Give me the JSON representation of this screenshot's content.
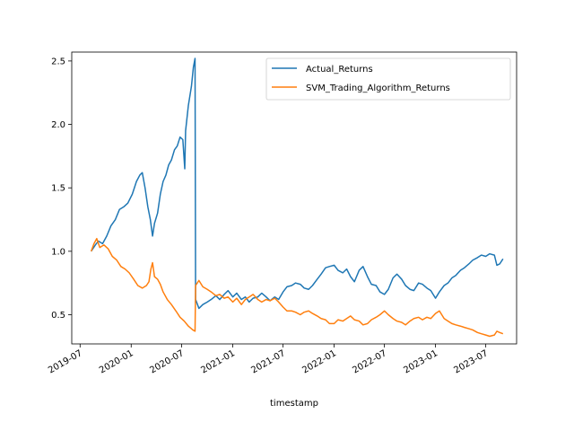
{
  "chart_data": {
    "type": "line",
    "title": "",
    "xlabel": "timestamp",
    "ylabel": "",
    "x_ticks": [
      "2019-07",
      "2020-01",
      "2020-07",
      "2021-01",
      "2021-07",
      "2022-01",
      "2022-07",
      "2023-01",
      "2023-07"
    ],
    "y_ticks": [
      "0.5",
      "1.0",
      "1.5",
      "2.0",
      "2.5"
    ],
    "xlim": [
      "2019-06-01",
      "2023-10-20"
    ],
    "ylim": [
      0.27,
      2.57
    ],
    "grid": false,
    "legend_position": "upper right",
    "series": [
      {
        "name": "Actual_Returns",
        "color": "#1f77b4",
        "points": [
          [
            "2019-08-10",
            1.0
          ],
          [
            "2019-08-25",
            1.05
          ],
          [
            "2019-09-05",
            1.08
          ],
          [
            "2019-09-20",
            1.06
          ],
          [
            "2019-10-05",
            1.12
          ],
          [
            "2019-10-20",
            1.2
          ],
          [
            "2019-11-05",
            1.25
          ],
          [
            "2019-11-20",
            1.33
          ],
          [
            "2019-12-05",
            1.35
          ],
          [
            "2019-12-20",
            1.38
          ],
          [
            "2020-01-05",
            1.45
          ],
          [
            "2020-01-20",
            1.55
          ],
          [
            "2020-02-01",
            1.6
          ],
          [
            "2020-02-10",
            1.62
          ],
          [
            "2020-02-20",
            1.5
          ],
          [
            "2020-03-01",
            1.35
          ],
          [
            "2020-03-10",
            1.25
          ],
          [
            "2020-03-18",
            1.12
          ],
          [
            "2020-03-25",
            1.22
          ],
          [
            "2020-04-05",
            1.3
          ],
          [
            "2020-04-15",
            1.45
          ],
          [
            "2020-04-25",
            1.55
          ],
          [
            "2020-05-05",
            1.6
          ],
          [
            "2020-05-15",
            1.68
          ],
          [
            "2020-05-25",
            1.72
          ],
          [
            "2020-06-05",
            1.8
          ],
          [
            "2020-06-15",
            1.83
          ],
          [
            "2020-06-25",
            1.9
          ],
          [
            "2020-07-05",
            1.88
          ],
          [
            "2020-07-12",
            1.65
          ],
          [
            "2020-07-15",
            1.95
          ],
          [
            "2020-07-25",
            2.15
          ],
          [
            "2020-08-05",
            2.3
          ],
          [
            "2020-08-12",
            2.45
          ],
          [
            "2020-08-18",
            2.52
          ],
          [
            "2020-08-20",
            0.62
          ],
          [
            "2020-09-01",
            0.55
          ],
          [
            "2020-09-15",
            0.58
          ],
          [
            "2020-10-01",
            0.6
          ],
          [
            "2020-10-15",
            0.62
          ],
          [
            "2020-11-01",
            0.65
          ],
          [
            "2020-11-15",
            0.62
          ],
          [
            "2020-12-01",
            0.66
          ],
          [
            "2020-12-15",
            0.69
          ],
          [
            "2021-01-01",
            0.64
          ],
          [
            "2021-01-15",
            0.67
          ],
          [
            "2021-02-01",
            0.62
          ],
          [
            "2021-02-15",
            0.64
          ],
          [
            "2021-03-01",
            0.6
          ],
          [
            "2021-03-15",
            0.63
          ],
          [
            "2021-04-01",
            0.64
          ],
          [
            "2021-04-15",
            0.67
          ],
          [
            "2021-05-01",
            0.64
          ],
          [
            "2021-05-15",
            0.61
          ],
          [
            "2021-06-01",
            0.64
          ],
          [
            "2021-06-15",
            0.62
          ],
          [
            "2021-07-01",
            0.68
          ],
          [
            "2021-07-15",
            0.72
          ],
          [
            "2021-08-01",
            0.73
          ],
          [
            "2021-08-15",
            0.75
          ],
          [
            "2021-09-01",
            0.74
          ],
          [
            "2021-09-15",
            0.71
          ],
          [
            "2021-10-01",
            0.7
          ],
          [
            "2021-10-15",
            0.73
          ],
          [
            "2021-11-01",
            0.78
          ],
          [
            "2021-11-15",
            0.82
          ],
          [
            "2021-12-01",
            0.87
          ],
          [
            "2021-12-15",
            0.88
          ],
          [
            "2022-01-01",
            0.89
          ],
          [
            "2022-01-15",
            0.85
          ],
          [
            "2022-02-01",
            0.83
          ],
          [
            "2022-02-15",
            0.86
          ],
          [
            "2022-03-01",
            0.8
          ],
          [
            "2022-03-15",
            0.76
          ],
          [
            "2022-04-01",
            0.85
          ],
          [
            "2022-04-15",
            0.88
          ],
          [
            "2022-05-01",
            0.8
          ],
          [
            "2022-05-15",
            0.74
          ],
          [
            "2022-06-01",
            0.73
          ],
          [
            "2022-06-15",
            0.68
          ],
          [
            "2022-07-01",
            0.66
          ],
          [
            "2022-07-15",
            0.7
          ],
          [
            "2022-08-01",
            0.79
          ],
          [
            "2022-08-15",
            0.82
          ],
          [
            "2022-09-01",
            0.78
          ],
          [
            "2022-09-15",
            0.73
          ],
          [
            "2022-10-01",
            0.7
          ],
          [
            "2022-10-15",
            0.69
          ],
          [
            "2022-11-01",
            0.75
          ],
          [
            "2022-11-15",
            0.74
          ],
          [
            "2022-12-01",
            0.71
          ],
          [
            "2022-12-15",
            0.69
          ],
          [
            "2023-01-01",
            0.63
          ],
          [
            "2023-01-15",
            0.68
          ],
          [
            "2023-02-01",
            0.73
          ],
          [
            "2023-02-15",
            0.75
          ],
          [
            "2023-03-01",
            0.79
          ],
          [
            "2023-03-15",
            0.81
          ],
          [
            "2023-04-01",
            0.85
          ],
          [
            "2023-04-15",
            0.87
          ],
          [
            "2023-05-01",
            0.9
          ],
          [
            "2023-05-15",
            0.93
          ],
          [
            "2023-06-01",
            0.95
          ],
          [
            "2023-06-15",
            0.97
          ],
          [
            "2023-07-01",
            0.96
          ],
          [
            "2023-07-15",
            0.98
          ],
          [
            "2023-08-01",
            0.97
          ],
          [
            "2023-08-10",
            0.89
          ],
          [
            "2023-08-20",
            0.9
          ],
          [
            "2023-09-01",
            0.94
          ]
        ]
      },
      {
        "name": "SVM_Trading_Algorithm_Returns",
        "color": "#ff7f0e",
        "points": [
          [
            "2019-08-10",
            1.0
          ],
          [
            "2019-08-20",
            1.06
          ],
          [
            "2019-08-30",
            1.1
          ],
          [
            "2019-09-10",
            1.03
          ],
          [
            "2019-09-25",
            1.05
          ],
          [
            "2019-10-10",
            1.02
          ],
          [
            "2019-10-25",
            0.96
          ],
          [
            "2019-11-10",
            0.93
          ],
          [
            "2019-11-25",
            0.88
          ],
          [
            "2019-12-10",
            0.86
          ],
          [
            "2019-12-25",
            0.83
          ],
          [
            "2020-01-10",
            0.78
          ],
          [
            "2020-01-25",
            0.73
          ],
          [
            "2020-02-10",
            0.71
          ],
          [
            "2020-02-25",
            0.73
          ],
          [
            "2020-03-05",
            0.76
          ],
          [
            "2020-03-12",
            0.86
          ],
          [
            "2020-03-18",
            0.91
          ],
          [
            "2020-03-25",
            0.8
          ],
          [
            "2020-04-05",
            0.78
          ],
          [
            "2020-04-15",
            0.74
          ],
          [
            "2020-04-25",
            0.68
          ],
          [
            "2020-05-10",
            0.62
          ],
          [
            "2020-05-25",
            0.58
          ],
          [
            "2020-06-10",
            0.53
          ],
          [
            "2020-06-25",
            0.48
          ],
          [
            "2020-07-10",
            0.45
          ],
          [
            "2020-07-25",
            0.41
          ],
          [
            "2020-08-10",
            0.38
          ],
          [
            "2020-08-18",
            0.37
          ],
          [
            "2020-08-20",
            0.73
          ],
          [
            "2020-09-01",
            0.77
          ],
          [
            "2020-09-15",
            0.72
          ],
          [
            "2020-10-01",
            0.7
          ],
          [
            "2020-10-15",
            0.68
          ],
          [
            "2020-11-01",
            0.65
          ],
          [
            "2020-11-15",
            0.66
          ],
          [
            "2020-12-01",
            0.63
          ],
          [
            "2020-12-15",
            0.64
          ],
          [
            "2021-01-01",
            0.6
          ],
          [
            "2021-01-15",
            0.63
          ],
          [
            "2021-02-01",
            0.58
          ],
          [
            "2021-02-15",
            0.62
          ],
          [
            "2021-03-01",
            0.64
          ],
          [
            "2021-03-15",
            0.66
          ],
          [
            "2021-04-01",
            0.62
          ],
          [
            "2021-04-15",
            0.6
          ],
          [
            "2021-05-01",
            0.62
          ],
          [
            "2021-05-15",
            0.61
          ],
          [
            "2021-06-01",
            0.63
          ],
          [
            "2021-06-15",
            0.6
          ],
          [
            "2021-07-01",
            0.56
          ],
          [
            "2021-07-15",
            0.53
          ],
          [
            "2021-08-01",
            0.53
          ],
          [
            "2021-08-15",
            0.52
          ],
          [
            "2021-09-01",
            0.5
          ],
          [
            "2021-09-15",
            0.52
          ],
          [
            "2021-10-01",
            0.53
          ],
          [
            "2021-10-15",
            0.51
          ],
          [
            "2021-11-01",
            0.49
          ],
          [
            "2021-11-15",
            0.47
          ],
          [
            "2021-12-01",
            0.46
          ],
          [
            "2021-12-15",
            0.43
          ],
          [
            "2022-01-01",
            0.43
          ],
          [
            "2022-01-15",
            0.46
          ],
          [
            "2022-02-01",
            0.45
          ],
          [
            "2022-02-15",
            0.47
          ],
          [
            "2022-03-01",
            0.49
          ],
          [
            "2022-03-15",
            0.46
          ],
          [
            "2022-04-01",
            0.45
          ],
          [
            "2022-04-15",
            0.42
          ],
          [
            "2022-05-01",
            0.43
          ],
          [
            "2022-05-15",
            0.46
          ],
          [
            "2022-06-01",
            0.48
          ],
          [
            "2022-06-15",
            0.5
          ],
          [
            "2022-07-01",
            0.53
          ],
          [
            "2022-07-15",
            0.5
          ],
          [
            "2022-08-01",
            0.47
          ],
          [
            "2022-08-15",
            0.45
          ],
          [
            "2022-09-01",
            0.44
          ],
          [
            "2022-09-15",
            0.42
          ],
          [
            "2022-10-01",
            0.45
          ],
          [
            "2022-10-15",
            0.47
          ],
          [
            "2022-11-01",
            0.48
          ],
          [
            "2022-11-15",
            0.46
          ],
          [
            "2022-12-01",
            0.48
          ],
          [
            "2022-12-15",
            0.47
          ],
          [
            "2023-01-01",
            0.51
          ],
          [
            "2023-01-15",
            0.53
          ],
          [
            "2023-02-01",
            0.47
          ],
          [
            "2023-02-15",
            0.45
          ],
          [
            "2023-03-01",
            0.43
          ],
          [
            "2023-03-15",
            0.42
          ],
          [
            "2023-04-01",
            0.41
          ],
          [
            "2023-04-15",
            0.4
          ],
          [
            "2023-05-01",
            0.39
          ],
          [
            "2023-05-15",
            0.38
          ],
          [
            "2023-06-01",
            0.36
          ],
          [
            "2023-06-15",
            0.35
          ],
          [
            "2023-07-01",
            0.34
          ],
          [
            "2023-07-15",
            0.33
          ],
          [
            "2023-08-01",
            0.34
          ],
          [
            "2023-08-10",
            0.37
          ],
          [
            "2023-08-20",
            0.36
          ],
          [
            "2023-09-01",
            0.35
          ]
        ]
      }
    ]
  }
}
